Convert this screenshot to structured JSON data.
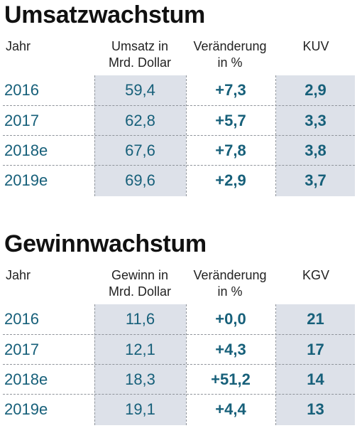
{
  "umsatz": {
    "title": "Umsatzwachstum",
    "headers": {
      "jahr": "Jahr",
      "col1": [
        "Umsatz in",
        "Mrd. Dollar"
      ],
      "col2": [
        "Veränderung",
        "in %"
      ],
      "col3": "KUV"
    },
    "rows": [
      {
        "jahr": "2016",
        "wert": "59,4",
        "veraenderung": "+7,3",
        "kennzahl": "2,9"
      },
      {
        "jahr": "2017",
        "wert": "62,8",
        "veraenderung": "+5,7",
        "kennzahl": "3,3"
      },
      {
        "jahr": "2018e",
        "wert": "67,6",
        "veraenderung": "+7,8",
        "kennzahl": "3,8"
      },
      {
        "jahr": "2019e",
        "wert": "69,6",
        "veraenderung": "+2,9",
        "kennzahl": "3,7"
      }
    ]
  },
  "gewinn": {
    "title": "Gewinnwachstum",
    "headers": {
      "jahr": "Jahr",
      "col1": [
        "Gewinn in",
        "Mrd. Dollar"
      ],
      "col2": [
        "Veränderung",
        "in %"
      ],
      "col3": "KGV"
    },
    "rows": [
      {
        "jahr": "2016",
        "wert": "11,6",
        "veraenderung": "+0,0",
        "kennzahl": "21"
      },
      {
        "jahr": "2017",
        "wert": "12,1",
        "veraenderung": "+4,3",
        "kennzahl": "17"
      },
      {
        "jahr": "2018e",
        "wert": "18,3",
        "veraenderung": "+51,2",
        "kennzahl": "14"
      },
      {
        "jahr": "2019e",
        "wert": "19,1",
        "veraenderung": "+4,4",
        "kennzahl": "13"
      }
    ]
  },
  "colors": {
    "value_text": "#17607a",
    "cell_shade": "#dde1e9",
    "divider": "#8f949b"
  }
}
